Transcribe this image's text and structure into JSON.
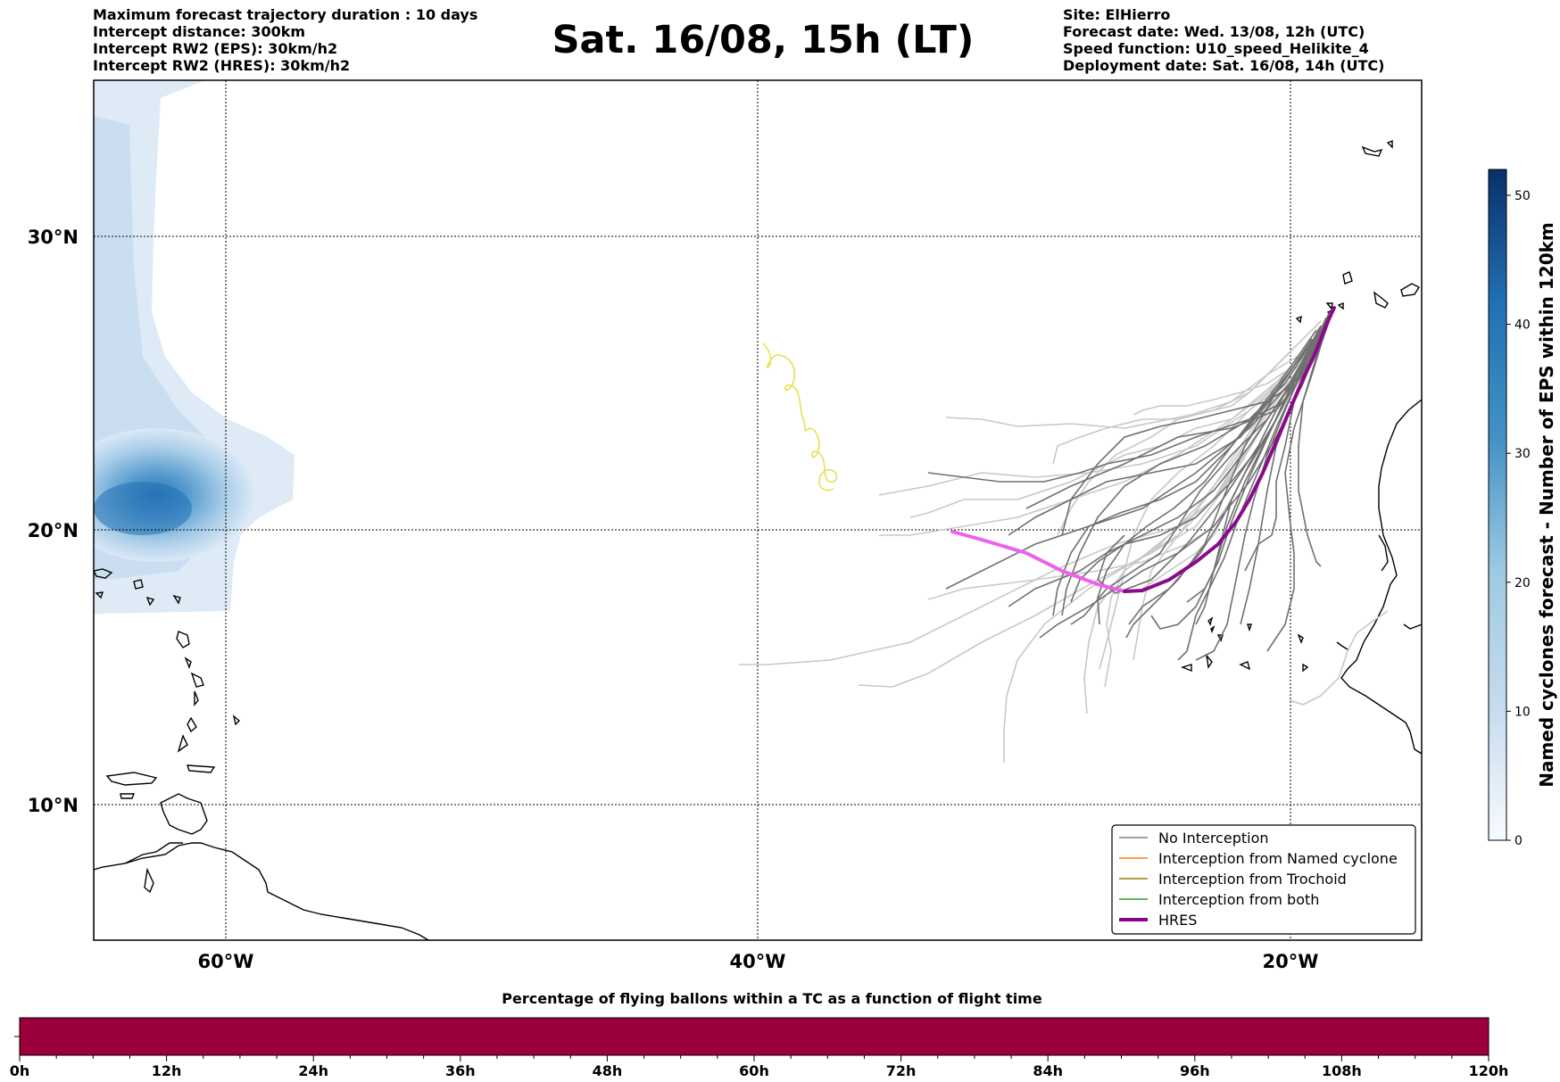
{
  "header": {
    "left_lines": [
      "Maximum forecast trajectory duration : 10 days",
      "Intercept distance: 300km",
      "Intercept RW2 (EPS):  30km/h2",
      "Intercept RW2 (HRES): 30km/h2"
    ],
    "title": "Sat. 16/08, 15h (LT)",
    "right_lines": [
      "Site: ElHierro",
      "Forecast date: Wed. 13/08, 12h (UTC)",
      "Speed function: U10_speed_Helikite_4",
      "Deployment date: Sat. 16/08, 14h (UTC)"
    ]
  },
  "map": {
    "lat_labels": [
      "30°N",
      "20°N",
      "10°N"
    ],
    "lon_labels": [
      "60°W",
      "40°W",
      "20°W"
    ],
    "launch_site": "ElHierro"
  },
  "legend": {
    "items": [
      {
        "label": "No Interception",
        "color": "#7f7f7f"
      },
      {
        "label": "Interception from Named cyclone",
        "color": "#ff7f0e"
      },
      {
        "label": "Interception from Trochoid",
        "color": "#9a7d0a"
      },
      {
        "label": "Interception from both",
        "color": "#2ca02c"
      },
      {
        "label": "HRES",
        "color": "#8b008b"
      }
    ]
  },
  "colorbar": {
    "label": "Named cyclones forecast - Number of EPS within 120km",
    "ticks": [
      "0",
      "10",
      "20",
      "30",
      "40",
      "50"
    ],
    "colors": [
      "#f7fbff",
      "#08306b"
    ],
    "vmin": 0,
    "vmax": 52
  },
  "time_bar": {
    "title": "Percentage of flying ballons within a TC as a function of flight time",
    "ticks": [
      "0h",
      "12h",
      "24h",
      "36h",
      "48h",
      "60h",
      "72h",
      "84h",
      "96h",
      "108h",
      "120h"
    ],
    "fill_color": "#9b003c",
    "fill_fraction": 1.0
  }
}
